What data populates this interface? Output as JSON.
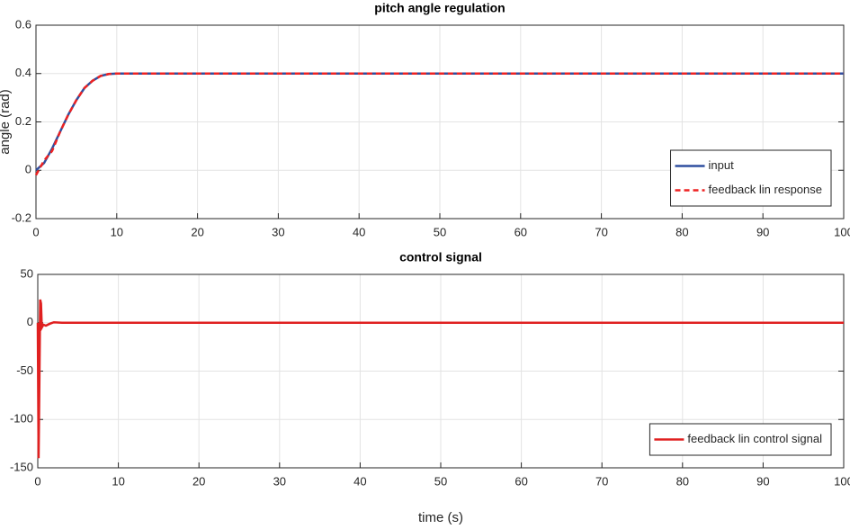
{
  "chart_data": [
    {
      "type": "line",
      "title": "pitch angle regulation",
      "ylabel": "angle (rad)",
      "x": [
        0,
        1,
        2,
        3,
        4,
        5,
        6,
        7,
        8,
        9,
        10,
        12,
        100
      ],
      "series": [
        {
          "name": "input",
          "color": "#2f4f9f",
          "linestyle": "solid",
          "values": [
            0,
            0.03,
            0.09,
            0.16,
            0.23,
            0.29,
            0.34,
            0.37,
            0.39,
            0.398,
            0.4,
            0.4,
            0.4
          ]
        },
        {
          "name": "feedback lin response",
          "color": "#ee2222",
          "linestyle": "dashed",
          "values": [
            -0.02,
            0.04,
            0.08,
            0.16,
            0.23,
            0.29,
            0.34,
            0.37,
            0.39,
            0.398,
            0.4,
            0.4,
            0.4
          ]
        }
      ],
      "xlim": [
        0,
        100
      ],
      "xticks": [
        0,
        10,
        20,
        30,
        40,
        50,
        60,
        70,
        80,
        90,
        100
      ],
      "ylim": [
        -0.2,
        0.6
      ],
      "yticks": [
        -0.2,
        0,
        0.2,
        0.4,
        0.6
      ],
      "grid": true,
      "legend": "lower right"
    },
    {
      "type": "line",
      "title": "control signal",
      "xlabel": "time (s)",
      "x": [
        0,
        0.1,
        0.2,
        0.3,
        0.4,
        0.5,
        0.7,
        1,
        1.5,
        2,
        3,
        100
      ],
      "series": [
        {
          "name": "feedback lin control signal",
          "color": "#e02020",
          "linestyle": "solid",
          "values": [
            0,
            -140,
            -60,
            24,
            20,
            -5,
            -2,
            -3,
            -1,
            0.5,
            0,
            0
          ]
        }
      ],
      "xlim": [
        0,
        100
      ],
      "xticks": [
        0,
        10,
        20,
        30,
        40,
        50,
        60,
        70,
        80,
        90,
        100
      ],
      "ylim": [
        -150,
        50
      ],
      "yticks": [
        -150,
        -100,
        -50,
        0,
        50
      ],
      "grid": true,
      "legend": "lower right"
    }
  ]
}
